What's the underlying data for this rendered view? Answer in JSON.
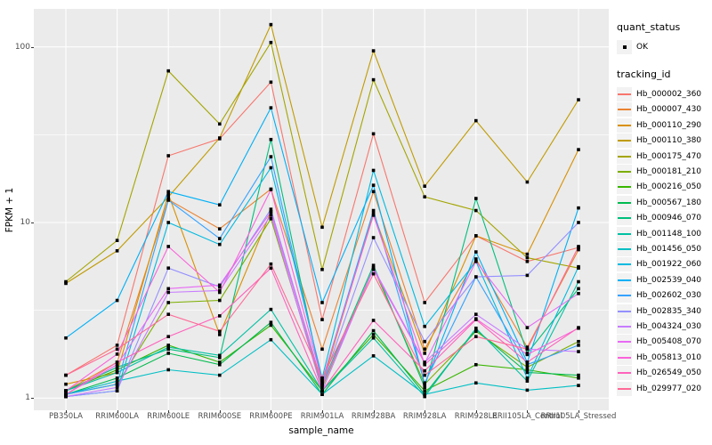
{
  "figure": {
    "y_axis": {
      "title": "FPKM + 1",
      "tick_labels": [
        "100",
        "10",
        "1"
      ],
      "tick_values": [
        100,
        10,
        1
      ]
    },
    "x_axis": {
      "title": "sample_name"
    },
    "legend": {
      "quant_status": {
        "title": "quant_status",
        "items": [
          {
            "label": "OK"
          }
        ]
      },
      "tracking_id": {
        "title": "tracking_id"
      }
    },
    "colors": {
      "panel_bg": "#EBEBEB",
      "grid": "#FFFFFF",
      "axis_text": "#4D4D4D",
      "legend_key_bg": "#F2F2F2",
      "marker": "#000000"
    }
  },
  "chart_data": {
    "type": "line",
    "title": "",
    "xlabel": "sample_name",
    "ylabel": "FPKM + 1",
    "y_scale": "log10",
    "ylim": [
      0.88,
      165
    ],
    "y_major_ticks": [
      1,
      10,
      100
    ],
    "y_minor_ticks": [
      3.162,
      31.62
    ],
    "grid": true,
    "legend_position": "right",
    "marker": "black-square",
    "quant_status_legend": {
      "title": "quant_status",
      "entries": [
        "OK"
      ]
    },
    "categories": [
      "PB350LA",
      "RRIM600LA",
      "RRIM600LE",
      "RRIM600SE",
      "RRIM600PE",
      "RRIM901LA",
      "RRIM928BA",
      "RRIM928LA",
      "RRIM928LE",
      "RRII105LA_Control",
      "RRII105LA_Stressed"
    ],
    "series": [
      {
        "name": "Hb_000002_360",
        "color": "#F8766D",
        "values": [
          1.35,
          2.0,
          24,
          30,
          63,
          2.8,
          32,
          3.5,
          8.4,
          6.0,
          7.2
        ]
      },
      {
        "name": "Hb_000007_430",
        "color": "#EA8331",
        "values": [
          1.1,
          1.6,
          13.5,
          9.2,
          15.5,
          1.9,
          15.0,
          1.9,
          6.2,
          1.95,
          7.0
        ]
      },
      {
        "name": "Hb_000110_290",
        "color": "#D89000",
        "values": [
          1.2,
          1.4,
          14.5,
          2.3,
          11.5,
          1.2,
          11.3,
          1.8,
          8.4,
          6.6,
          26
        ]
      },
      {
        "name": "Hb_000110_380",
        "color": "#C09B00",
        "values": [
          4.5,
          6.9,
          14.0,
          30.3,
          134,
          9.4,
          95,
          16.1,
          38,
          17,
          50
        ]
      },
      {
        "name": "Hb_000175_470",
        "color": "#A3A500",
        "values": [
          4.6,
          7.9,
          73,
          36.4,
          106,
          5.4,
          65,
          14.0,
          11.7,
          6.3,
          5.5
        ]
      },
      {
        "name": "Hb_000181_210",
        "color": "#7CAE00",
        "values": [
          1.05,
          1.2,
          3.5,
          3.6,
          10.5,
          1.15,
          5.5,
          1.2,
          2.4,
          1.5,
          2.1
        ]
      },
      {
        "name": "Hb_000216_050",
        "color": "#39B600",
        "values": [
          1.1,
          1.45,
          2.0,
          1.6,
          2.6,
          1.1,
          2.3,
          1.1,
          1.55,
          1.45,
          1.3
        ]
      },
      {
        "name": "Hb_000567_180",
        "color": "#00BB4E",
        "values": [
          1.05,
          1.3,
          1.8,
          1.55,
          2.7,
          1.05,
          2.42,
          1.05,
          2.45,
          1.4,
          1.35
        ]
      },
      {
        "name": "Hb_000946_070",
        "color": "#00BF7D",
        "values": [
          1.1,
          1.5,
          1.9,
          1.7,
          29.7,
          1.2,
          5.7,
          1.15,
          13.7,
          1.8,
          4.2
        ]
      },
      {
        "name": "Hb_001148_100",
        "color": "#00C1A3",
        "values": [
          1.1,
          1.4,
          1.95,
          1.75,
          3.2,
          1.1,
          2.2,
          1.02,
          2.5,
          1.25,
          4.6
        ]
      },
      {
        "name": "Hb_001456_050",
        "color": "#00BFC4",
        "values": [
          1.05,
          1.25,
          1.45,
          1.35,
          2.15,
          1.05,
          1.74,
          1.05,
          1.22,
          1.11,
          1.18
        ]
      },
      {
        "name": "Hb_001922_060",
        "color": "#00BAE0",
        "values": [
          1.02,
          1.1,
          10.0,
          7.5,
          20.5,
          1.3,
          19.8,
          2.56,
          6.0,
          1.3,
          5.6
        ]
      },
      {
        "name": "Hb_002539_040",
        "color": "#00B0F6",
        "values": [
          2.2,
          3.6,
          15.0,
          12.6,
          45,
          3.5,
          16.3,
          1.2,
          6.8,
          1.6,
          12.1
        ]
      },
      {
        "name": "Hb_002602_030",
        "color": "#35A2FF",
        "values": [
          1.05,
          1.2,
          13.4,
          8.1,
          23.7,
          1.25,
          11.7,
          1.22,
          4.9,
          1.55,
          2.0
        ]
      },
      {
        "name": "Hb_002835_340",
        "color": "#9590FF",
        "values": [
          1.02,
          1.1,
          5.5,
          4.3,
          11.9,
          1.2,
          8.2,
          2.1,
          4.9,
          5.0,
          10.0
        ]
      },
      {
        "name": "Hb_004324_030",
        "color": "#C77CFF",
        "values": [
          1.02,
          1.15,
          4.0,
          4.1,
          11.0,
          1.1,
          5.5,
          1.6,
          3.0,
          1.9,
          1.84
        ]
      },
      {
        "name": "Hb_005408_070",
        "color": "#E76BF3",
        "values": [
          1.05,
          1.55,
          4.2,
          4.4,
          11.5,
          1.18,
          5.4,
          1.58,
          6.0,
          2.52,
          3.94
        ]
      },
      {
        "name": "Hb_005813_010",
        "color": "#FA62DB",
        "values": [
          1.1,
          1.78,
          7.3,
          4.0,
          15.4,
          1.25,
          11.0,
          1.55,
          2.83,
          1.77,
          2.5
        ]
      },
      {
        "name": "Hb_026549_050",
        "color": "#FF62BC",
        "values": [
          1.05,
          1.6,
          2.24,
          2.94,
          5.5,
          1.1,
          2.77,
          1.43,
          2.8,
          1.6,
          2.52
        ]
      },
      {
        "name": "Hb_029977_020",
        "color": "#FF6A98",
        "values": [
          1.35,
          1.9,
          3.0,
          2.4,
          5.8,
          1.3,
          5.1,
          1.35,
          2.24,
          1.9,
          7.3
        ]
      }
    ]
  }
}
